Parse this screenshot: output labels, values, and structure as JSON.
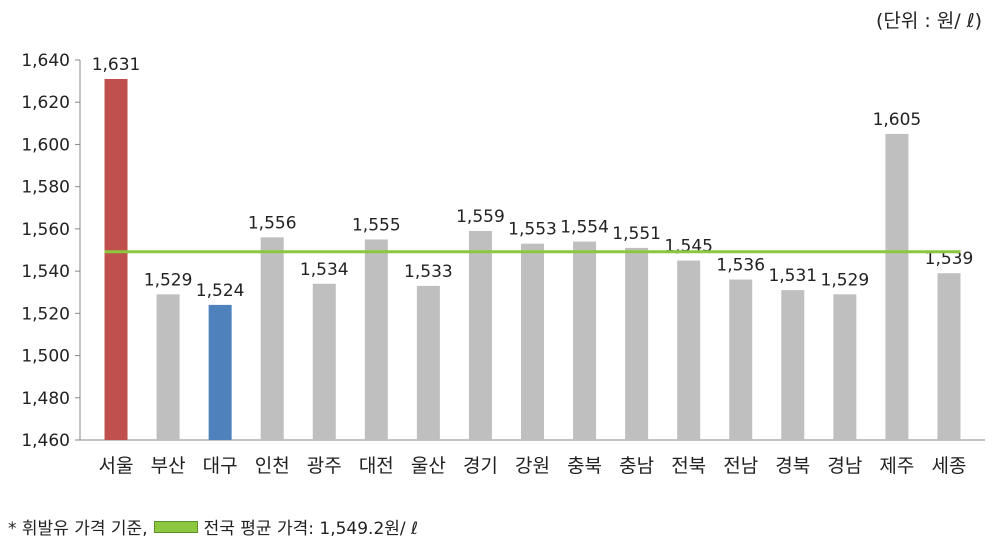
{
  "unit_note": "(단위 : 원/ ℓ)",
  "footnote": {
    "prefix": "* 휘발유 가격 기준,",
    "legend_label": "전국 평균 가격: 1,549.2원/ ℓ"
  },
  "colors": {
    "default_bar": "#bfbfbf",
    "highlight_high": "#c0504d",
    "highlight_low": "#4f81bd",
    "average_line": "#8dc63f",
    "axis": "#888888"
  },
  "chart_data": {
    "type": "bar",
    "title": "",
    "xlabel": "",
    "ylabel": "",
    "categories": [
      "서울",
      "부산",
      "대구",
      "인천",
      "광주",
      "대전",
      "울산",
      "경기",
      "강원",
      "충북",
      "충남",
      "전북",
      "전남",
      "경북",
      "경남",
      "제주",
      "세종"
    ],
    "values": [
      1631,
      1529,
      1524,
      1556,
      1534,
      1555,
      1533,
      1559,
      1553,
      1554,
      1551,
      1545,
      1536,
      1531,
      1529,
      1605,
      1539
    ],
    "value_labels": [
      "1,631",
      "1,529",
      "1,524",
      "1,556",
      "1,534",
      "1,555",
      "1,533",
      "1,559",
      "1,553",
      "1,554",
      "1,551",
      "1,545",
      "1,536",
      "1,531",
      "1,529",
      "1,605",
      "1,539"
    ],
    "bar_colors": [
      "highlight_high",
      "default_bar",
      "highlight_low",
      "default_bar",
      "default_bar",
      "default_bar",
      "default_bar",
      "default_bar",
      "default_bar",
      "default_bar",
      "default_bar",
      "default_bar",
      "default_bar",
      "default_bar",
      "default_bar",
      "default_bar",
      "default_bar"
    ],
    "ylim": [
      1460,
      1640
    ],
    "yticks": [
      1460,
      1480,
      1500,
      1520,
      1540,
      1560,
      1580,
      1600,
      1620,
      1640
    ],
    "ytick_labels": [
      "1,460",
      "1,480",
      "1,500",
      "1,520",
      "1,540",
      "1,560",
      "1,580",
      "1,600",
      "1,620",
      "1,640"
    ],
    "average": 1549.2,
    "grid": false,
    "legend": "bottom-left"
  }
}
